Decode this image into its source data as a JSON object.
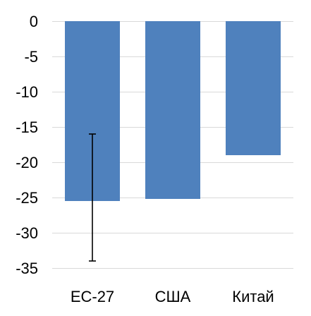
{
  "chart_data": {
    "type": "bar",
    "categories": [
      "ЕС-27",
      "США",
      "Китай"
    ],
    "values": [
      -25.5,
      -25.2,
      -19
    ],
    "error_bars": [
      {
        "category": "ЕС-27",
        "low": -34,
        "high": -16
      },
      null,
      null
    ],
    "ylim": [
      -35,
      0
    ],
    "yticks": [
      0,
      -5,
      -10,
      -15,
      -20,
      -25,
      -30,
      -35
    ],
    "grid": true,
    "bar_color": "#4f81bd",
    "title": "",
    "xlabel": "",
    "ylabel": ""
  }
}
